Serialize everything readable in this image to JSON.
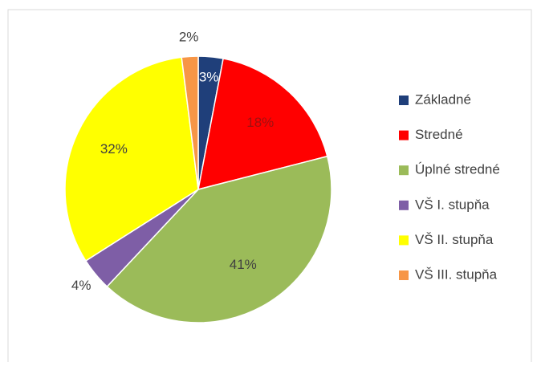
{
  "chart_data": {
    "type": "pie",
    "categories": [
      "Základné",
      "Stredné",
      "Úplné stredné",
      "VŠ I. stupňa",
      "VŠ II. stupňa",
      "VŠ III. stupňa"
    ],
    "values": [
      3,
      18,
      41,
      4,
      32,
      2
    ],
    "value_labels": [
      "3%",
      "18%",
      "41%",
      "4%",
      "32%",
      "2%"
    ],
    "colors": [
      "#1f3f7a",
      "#ff0000",
      "#9bbb59",
      "#7e5ea6",
      "#ffff00",
      "#f79646"
    ],
    "legend": "right"
  }
}
